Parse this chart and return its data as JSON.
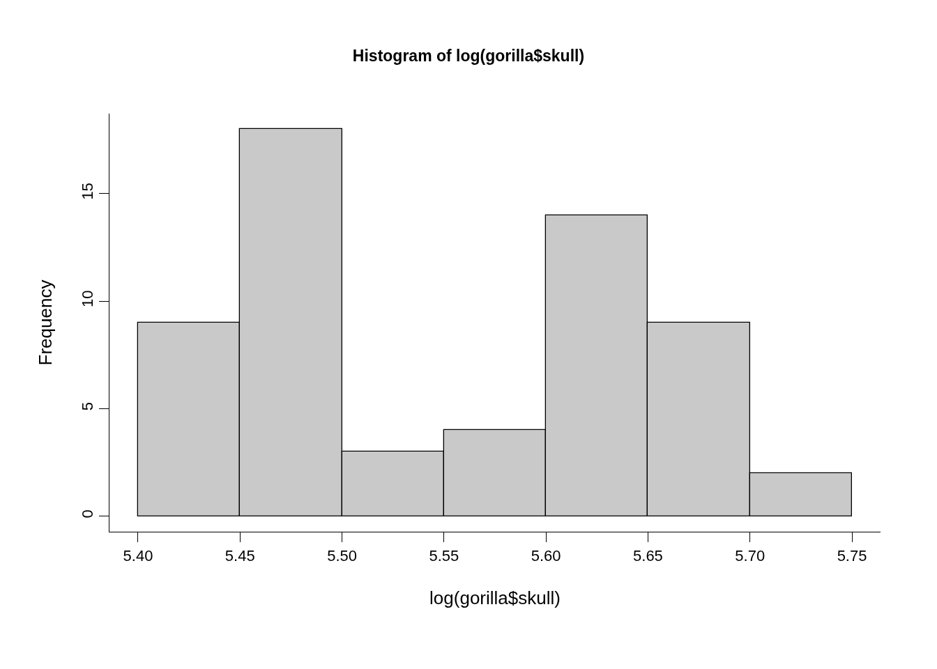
{
  "chart_data": {
    "type": "histogram",
    "title": "Histogram of log(gorilla$skull)",
    "xlabel": "log(gorilla$skull)",
    "ylabel": "Frequency",
    "bins": [
      5.4,
      5.45,
      5.5,
      5.55,
      5.6,
      5.65,
      5.7,
      5.75
    ],
    "values": [
      9,
      18,
      3,
      4,
      14,
      9,
      2
    ],
    "color": "#c9c9c9",
    "xlim": [
      5.386,
      5.764
    ],
    "ylim": [
      -0.72,
      18.72
    ],
    "xticks": [
      {
        "value": 5.4,
        "label": "5.40"
      },
      {
        "value": 5.45,
        "label": "5.45"
      },
      {
        "value": 5.5,
        "label": "5.50"
      },
      {
        "value": 5.55,
        "label": "5.55"
      },
      {
        "value": 5.6,
        "label": "5.60"
      },
      {
        "value": 5.65,
        "label": "5.65"
      },
      {
        "value": 5.7,
        "label": "5.70"
      },
      {
        "value": 5.75,
        "label": "5.75"
      }
    ],
    "yticks": [
      0,
      5,
      10,
      15
    ]
  }
}
